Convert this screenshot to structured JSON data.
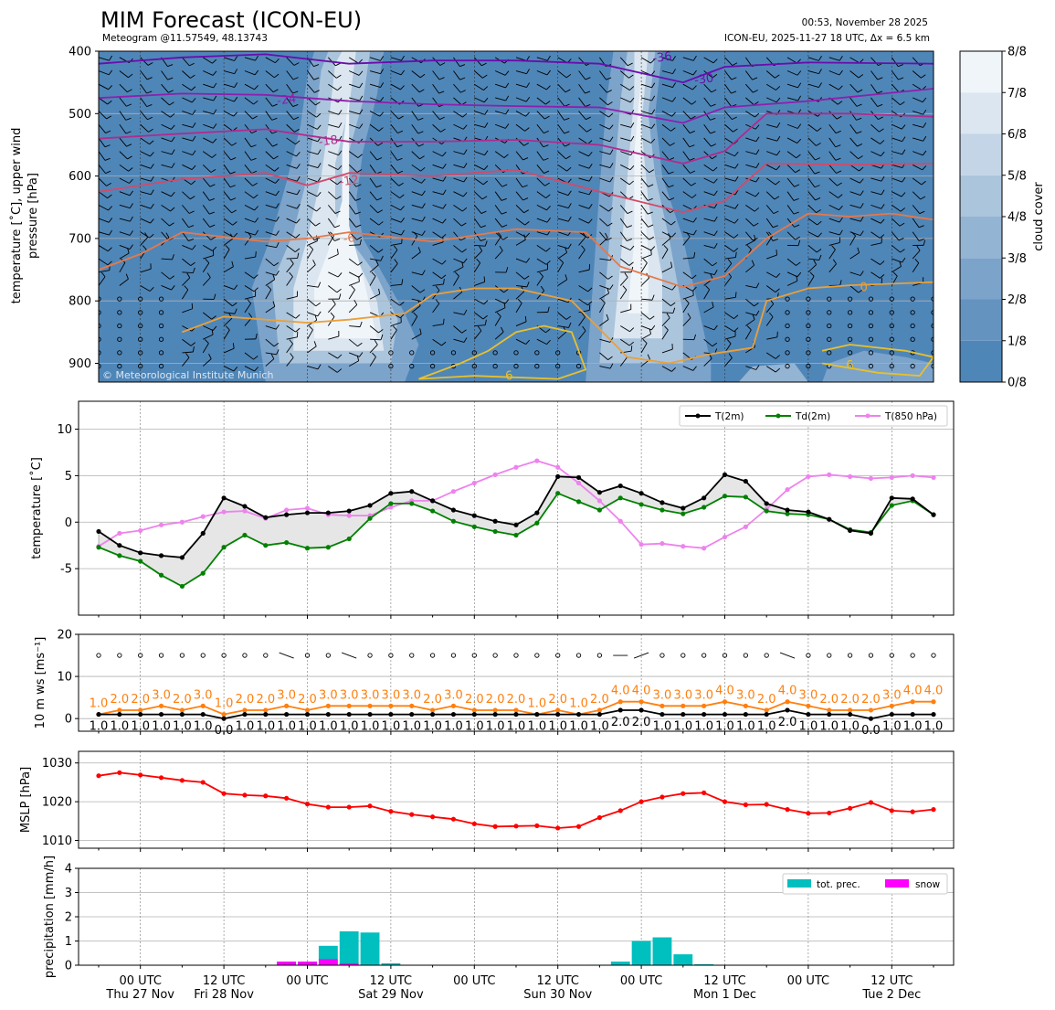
{
  "header": {
    "title": "MIM Forecast (ICON-EU)",
    "subtitle": "Meteogram @11.57549, 48.13743",
    "timestamp": "00:53, November 28 2025",
    "model_run": "ICON-EU, 2025-11-27 18 UTC, Δx = 6.5 km",
    "copyright": "© Meteorological Institute Munich"
  },
  "colors": {
    "cloud_low": "#4f86b8",
    "temp_line": "#000000",
    "dew_line": "#008000",
    "t850_line": "#ee82ee",
    "ws_mean": "#000000",
    "ws_gust": "#ff7f0e",
    "mslp": "#ff0000",
    "precip": "#00bfbf",
    "snow": "#ff00ff"
  },
  "time_axis": {
    "ticks": [
      {
        "t": 6,
        "label": "00 UTC",
        "day": "Thu 27 Nov"
      },
      {
        "t": 18,
        "label": "12 UTC",
        "day": "Fri 28 Nov"
      },
      {
        "t": 30,
        "label": "00 UTC",
        "day": ""
      },
      {
        "t": 42,
        "label": "12 UTC",
        "day": "Sat 29 Nov"
      },
      {
        "t": 54,
        "label": "00 UTC",
        "day": ""
      },
      {
        "t": 66,
        "label": "12 UTC",
        "day": "Sun 30 Nov"
      },
      {
        "t": 78,
        "label": "00 UTC",
        "day": ""
      },
      {
        "t": 90,
        "label": "12 UTC",
        "day": "Mon 1 Dec"
      },
      {
        "t": 102,
        "label": "00 UTC",
        "day": ""
      },
      {
        "t": 114,
        "label": "12 UTC",
        "day": "Tue 2 Dec"
      }
    ]
  },
  "chart_data": [
    {
      "type": "heatmap",
      "name": "cloud cover cross-section",
      "ylabel": "temperature [˚C], upper wind\npressure [hPa]",
      "yticks": [
        400,
        500,
        600,
        700,
        800,
        900
      ],
      "ylim": [
        930,
        400
      ],
      "colorbar": {
        "label": "cloud cover",
        "ticks": [
          "0/8",
          "1/8",
          "2/8",
          "3/8",
          "4/8",
          "5/8",
          "6/8",
          "7/8",
          "8/8"
        ]
      },
      "isotherm_labels": [
        "-36",
        "-30",
        "-24",
        "-18",
        "-12",
        "-6",
        "0",
        "6",
        "6"
      ]
    },
    {
      "type": "line",
      "name": "temperature",
      "ylabel": "temperature [˚C]",
      "ylim": [
        -10,
        13
      ],
      "yticks": [
        -5,
        0,
        5,
        10
      ],
      "x": [
        0,
        3,
        6,
        9,
        12,
        15,
        18,
        21,
        24,
        27,
        30,
        33,
        36,
        39,
        42,
        45,
        48,
        51,
        54,
        57,
        60,
        63,
        66,
        69,
        72,
        75,
        78,
        81,
        84,
        87,
        90,
        93,
        96,
        99,
        102,
        105,
        108,
        111,
        114,
        117,
        120
      ],
      "series": [
        {
          "name": "T(2m)",
          "values": [
            -1.0,
            -2.5,
            -3.3,
            -3.6,
            -3.8,
            -1.2,
            2.6,
            1.7,
            0.5,
            0.8,
            1.0,
            1.0,
            1.2,
            1.8,
            3.1,
            3.3,
            2.3,
            1.3,
            0.7,
            0.1,
            -0.3,
            1.0,
            4.9,
            4.8,
            3.2,
            3.9,
            3.1,
            2.1,
            1.5,
            2.6,
            5.1,
            4.4,
            2.0,
            1.3,
            1.1,
            0.3,
            -0.9,
            -1.2,
            2.6,
            2.5,
            0.8
          ]
        },
        {
          "name": "Td(2m)",
          "values": [
            -2.7,
            -3.6,
            -4.2,
            -5.7,
            -6.9,
            -5.5,
            -2.7,
            -1.4,
            -2.5,
            -2.2,
            -2.8,
            -2.7,
            -1.8,
            0.4,
            2.0,
            2.0,
            1.2,
            0.1,
            -0.5,
            -1.0,
            -1.4,
            -0.1,
            3.1,
            2.2,
            1.3,
            2.6,
            1.9,
            1.3,
            0.9,
            1.6,
            2.8,
            2.7,
            1.2,
            0.9,
            0.8,
            0.3,
            -0.8,
            -1.1,
            1.8,
            2.3,
            0.8
          ]
        },
        {
          "name": "T(850 hPa)",
          "values": [
            -2.6,
            -1.2,
            -0.9,
            -0.3,
            0.0,
            0.6,
            1.1,
            1.2,
            0.4,
            1.3,
            1.5,
            0.8,
            0.7,
            0.7,
            1.6,
            2.3,
            2.3,
            3.3,
            4.2,
            5.1,
            5.9,
            6.6,
            5.9,
            4.2,
            2.3,
            0.1,
            -2.4,
            -2.3,
            -2.6,
            -2.8,
            -1.6,
            -0.5,
            1.4,
            3.5,
            4.9,
            5.1,
            4.9,
            4.7,
            4.8,
            5.0,
            4.8
          ]
        }
      ]
    },
    {
      "type": "line",
      "name": "10 m wind speed",
      "ylabel": "10 m ws [ms⁻¹]",
      "ylim": [
        -3,
        20
      ],
      "yticks": [
        0,
        10,
        20
      ],
      "x": [
        0,
        3,
        6,
        9,
        12,
        15,
        18,
        21,
        24,
        27,
        30,
        33,
        36,
        39,
        42,
        45,
        48,
        51,
        54,
        57,
        60,
        63,
        66,
        69,
        72,
        75,
        78,
        81,
        84,
        87,
        90,
        93,
        96,
        99,
        102,
        105,
        108,
        111,
        114,
        117,
        120
      ],
      "series": [
        {
          "name": "mean",
          "values": [
            1.0,
            1.0,
            1.0,
            1.0,
            1.0,
            1.0,
            0.0,
            1.0,
            1.0,
            1.0,
            1.0,
            1.0,
            1.0,
            1.0,
            1.0,
            1.0,
            1.0,
            1.0,
            1.0,
            1.0,
            1.0,
            1.0,
            1.0,
            1.0,
            1.0,
            2.0,
            2.0,
            1.0,
            1.0,
            1.0,
            1.0,
            1.0,
            1.0,
            2.0,
            1.0,
            1.0,
            1.0,
            0.0,
            1.0,
            1.0,
            1.0
          ]
        },
        {
          "name": "gust",
          "values": [
            1.0,
            2.0,
            2.0,
            3.0,
            2.0,
            3.0,
            1.0,
            2.0,
            2.0,
            3.0,
            2.0,
            3.0,
            3.0,
            3.0,
            3.0,
            3.0,
            2.0,
            3.0,
            2.0,
            2.0,
            2.0,
            1.0,
            2.0,
            1.0,
            2.0,
            4.0,
            4.0,
            3.0,
            3.0,
            3.0,
            4.0,
            3.0,
            2.0,
            4.0,
            3.0,
            2.0,
            2.0,
            2.0,
            3.0,
            4.0,
            4.0
          ]
        }
      ]
    },
    {
      "type": "line",
      "name": "mean sea level pressure",
      "ylabel": "MSLP [hPa]",
      "ylim": [
        1008,
        1033
      ],
      "yticks": [
        1010,
        1020,
        1030
      ],
      "x": [
        0,
        3,
        6,
        9,
        12,
        15,
        18,
        21,
        24,
        27,
        30,
        33,
        36,
        39,
        42,
        45,
        48,
        51,
        54,
        57,
        60,
        63,
        66,
        69,
        72,
        75,
        78,
        81,
        84,
        87,
        90,
        93,
        96,
        99,
        102,
        105,
        108,
        111,
        114,
        117,
        120
      ],
      "series": [
        {
          "name": "MSLP",
          "values": [
            1026.7,
            1027.5,
            1026.9,
            1026.2,
            1025.5,
            1025.0,
            1022.1,
            1021.7,
            1021.5,
            1020.9,
            1019.4,
            1018.6,
            1018.6,
            1018.9,
            1017.5,
            1016.7,
            1016.1,
            1015.5,
            1014.3,
            1013.6,
            1013.7,
            1013.8,
            1013.2,
            1013.6,
            1015.9,
            1017.7,
            1020.0,
            1021.2,
            1022.1,
            1022.3,
            1020.0,
            1019.2,
            1019.3,
            1018.0,
            1017.0,
            1017.1,
            1018.3,
            1019.8,
            1017.7,
            1017.4,
            1018.0
          ]
        }
      ]
    },
    {
      "type": "bar",
      "name": "precipitation",
      "ylabel": "precipitation [mm/h]",
      "ylim": [
        0,
        4
      ],
      "yticks": [
        0,
        1,
        2,
        3,
        4
      ],
      "x": [
        27,
        30,
        33,
        36,
        39,
        42,
        45,
        48,
        51,
        54,
        57,
        60,
        63,
        66,
        69,
        72,
        75,
        78,
        81,
        84,
        87,
        90
      ],
      "series": [
        {
          "name": "tot. prec.",
          "values": [
            0.15,
            0.15,
            0.8,
            1.4,
            1.35,
            0.08,
            0,
            0,
            0,
            0,
            0,
            0,
            0,
            0,
            0,
            0.02,
            0.15,
            1.0,
            1.15,
            0.45,
            0.04,
            0
          ]
        },
        {
          "name": "snow",
          "values": [
            0.15,
            0.15,
            0.25,
            0.08,
            0,
            0,
            0,
            0,
            0,
            0,
            0,
            0,
            0,
            0,
            0,
            0,
            0,
            0,
            0,
            0,
            0,
            0
          ]
        }
      ]
    }
  ]
}
